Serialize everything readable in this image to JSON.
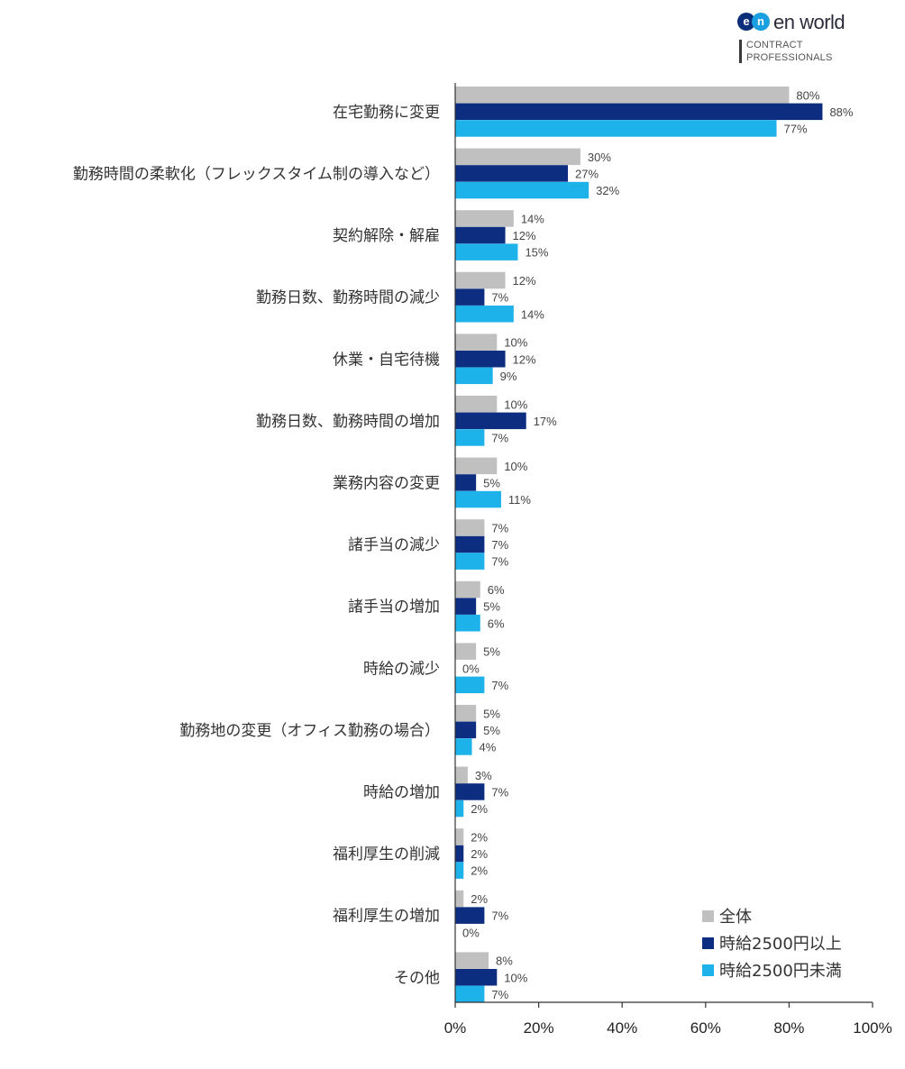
{
  "logo": {
    "mark_e": "e",
    "mark_n": "n",
    "wordmark": "en world",
    "subline1": "CONTRACT",
    "subline2": "PROFESSIONALS"
  },
  "chart_data": {
    "type": "bar",
    "orientation": "horizontal",
    "categories": [
      "在宅勤務に変更",
      "勤務時間の柔軟化（フレックスタイム制の導入など）",
      "契約解除・解雇",
      "勤務日数、勤務時間の減少",
      "休業・自宅待機",
      "勤務日数、勤務時間の増加",
      "業務内容の変更",
      "諸手当の減少",
      "諸手当の増加",
      "時給の減少",
      "勤務地の変更（オフィス勤務の場合）",
      "時給の増加",
      "福利厚生の削減",
      "福利厚生の増加",
      "その他"
    ],
    "series": [
      {
        "name": "全体",
        "color": "#c0c0c0",
        "values": [
          80,
          30,
          14,
          12,
          10,
          10,
          10,
          7,
          6,
          5,
          5,
          3,
          2,
          2,
          8
        ]
      },
      {
        "name": "時給2500円以上",
        "color": "#0d2e80",
        "values": [
          88,
          27,
          12,
          7,
          12,
          17,
          5,
          7,
          5,
          0,
          5,
          7,
          2,
          7,
          10
        ]
      },
      {
        "name": "時給2500円未満",
        "color": "#1db2ea",
        "values": [
          77,
          32,
          15,
          14,
          9,
          7,
          11,
          7,
          6,
          7,
          4,
          2,
          2,
          0,
          7
        ]
      }
    ],
    "value_suffix": "%",
    "xlim": [
      0,
      100
    ],
    "xticks": [
      "0%",
      "20%",
      "40%",
      "60%",
      "80%",
      "100%"
    ],
    "grid": false,
    "legend_position": "bottom-right",
    "title": "",
    "xlabel": "",
    "ylabel": ""
  }
}
